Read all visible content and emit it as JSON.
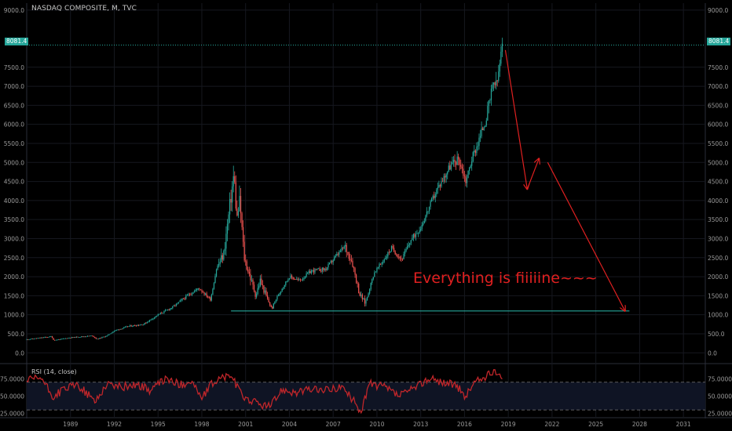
{
  "header": {
    "title": "NASDAQ COMPOSITE, M, TVC",
    "rsi_label": "RSI (14, close)"
  },
  "annotation": {
    "text": "Everything is fiiiiine~~~"
  },
  "price_tag": {
    "value": "8081.4"
  },
  "colors": {
    "background": "#000000",
    "up": "#26a69a",
    "down": "#ef5350",
    "rsi_line": "#c0262a",
    "annotation": "#e02020",
    "support": "#26a69a",
    "band": "#0f1424"
  },
  "chart_data": [
    {
      "type": "candlestick",
      "title": "NASDAQ COMPOSITE, M, TVC",
      "xlabel": "",
      "ylabel": "",
      "x_ticks": [
        "1989",
        "1992",
        "1995",
        "1998",
        "2001",
        "2004",
        "2007",
        "2010",
        "2013",
        "2016",
        "2019",
        "2022",
        "2025",
        "2028",
        "2031"
      ],
      "x_range": [
        1986.0,
        2032.5
      ],
      "y_ticks": [
        "0.0",
        "500.0",
        "1000.0",
        "1500.0",
        "2000.0",
        "2500.0",
        "3000.0",
        "3500.0",
        "4000.0",
        "4500.0",
        "5000.0",
        "5500.0",
        "6000.0",
        "6500.0",
        "7000.0",
        "7500.0",
        "9000.0"
      ],
      "ylim": [
        -200,
        9100
      ],
      "grid": true,
      "last_price": 8081.4,
      "close_series": {
        "x": [
          1986.0,
          1987.7,
          1987.85,
          1989.0,
          1990.5,
          1990.8,
          1991.5,
          1992.0,
          1993.0,
          1994.0,
          1995.0,
          1996.0,
          1997.0,
          1997.8,
          1998.6,
          1999.0,
          1999.5,
          1999.9,
          2000.2,
          2000.4,
          2000.6,
          2000.9,
          2001.3,
          2001.7,
          2002.0,
          2002.5,
          2002.8,
          2003.0,
          2003.5,
          2004.0,
          2004.7,
          2005.5,
          2006.5,
          2007.0,
          2007.8,
          2008.3,
          2008.8,
          2009.2,
          2009.8,
          2010.3,
          2011.0,
          2011.7,
          2012.3,
          2013.0,
          2014.0,
          2015.0,
          2015.6,
          2016.1,
          2016.5,
          2017.0,
          2017.5,
          2018.0,
          2018.2,
          2018.6
        ],
        "y": [
          350,
          430,
          330,
          400,
          450,
          360,
          450,
          580,
          700,
          750,
          1000,
          1200,
          1500,
          1700,
          1400,
          2200,
          2600,
          3800,
          4700,
          3500,
          4000,
          2500,
          2000,
          1500,
          1900,
          1400,
          1150,
          1350,
          1700,
          2000,
          1900,
          2150,
          2200,
          2450,
          2800,
          2400,
          1550,
          1300,
          2100,
          2350,
          2750,
          2450,
          2950,
          3300,
          4200,
          4900,
          5100,
          4500,
          5100,
          5600,
          6200,
          7100,
          7000,
          8081
        ]
      },
      "annotations": {
        "support_line": {
          "x": [
            2000.0,
            2027.3
          ],
          "y": [
            1100,
            1100
          ]
        },
        "projection_arrows": [
          {
            "x": [
              2018.8,
              2020.3
            ],
            "y": [
              7950,
              4300
            ]
          },
          {
            "x": [
              2020.3,
              2021.1
            ],
            "y": [
              4300,
              5100
            ]
          },
          {
            "x": [
              2021.7,
              2027.0
            ],
            "y": [
              5000,
              1100
            ]
          }
        ]
      }
    },
    {
      "type": "line",
      "title": "RSI (14, close)",
      "y_ticks": [
        "75.0000",
        "50.0000",
        "25.0000"
      ],
      "ylim": [
        20,
        90
      ],
      "band": [
        30,
        70
      ],
      "series": [
        {
          "name": "RSI (14, close)",
          "x": [
            1986.0,
            1987.0,
            1987.8,
            1988.5,
            1989.5,
            1990.7,
            1991.5,
            1992.5,
            1993.5,
            1994.5,
            1995.5,
            1996.5,
            1997.3,
            1998.0,
            1998.7,
            1999.3,
            2000.0,
            2000.7,
            2001.3,
            2002.0,
            2002.7,
            2003.5,
            2004.5,
            2005.5,
            2006.5,
            2007.5,
            2008.3,
            2008.9,
            2009.5,
            2010.5,
            2011.5,
            2012.5,
            2013.5,
            2014.5,
            2015.5,
            2016.0,
            2016.7,
            2017.5,
            2018.0,
            2018.6
          ],
          "y": [
            72,
            76,
            48,
            60,
            66,
            42,
            68,
            63,
            67,
            58,
            75,
            66,
            72,
            46,
            68,
            76,
            80,
            52,
            44,
            38,
            35,
            60,
            55,
            60,
            58,
            64,
            46,
            28,
            68,
            63,
            50,
            60,
            75,
            70,
            65,
            48,
            70,
            78,
            85,
            80
          ]
        }
      ]
    }
  ]
}
